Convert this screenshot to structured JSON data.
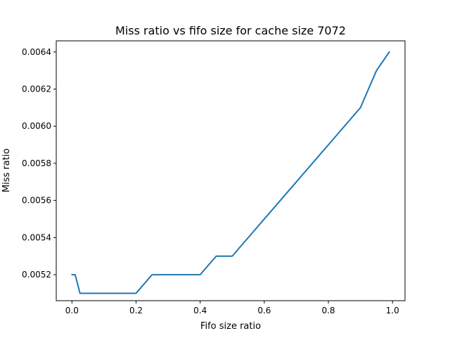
{
  "chart_data": {
    "type": "line",
    "title": "Miss ratio vs fifo size for cache size 7072",
    "xlabel": "Fifo size ratio",
    "ylabel": "Miss ratio",
    "xlim": [
      -0.049,
      1.039
    ],
    "ylim": [
      0.00506,
      0.00646
    ],
    "xticks": [
      0.0,
      0.2,
      0.4,
      0.6,
      0.8,
      1.0
    ],
    "xtick_labels": [
      "0.0",
      "0.2",
      "0.4",
      "0.6",
      "0.8",
      "1.0"
    ],
    "yticks": [
      0.0052,
      0.0054,
      0.0056,
      0.0058,
      0.006,
      0.0062,
      0.0064
    ],
    "ytick_labels": [
      "0.0052",
      "0.0054",
      "0.0056",
      "0.0058",
      "0.0060",
      "0.0062",
      "0.0064"
    ],
    "grid": false,
    "series": [
      {
        "color": "#1f77b4",
        "x": [
          0.0,
          0.01,
          0.025,
          0.05,
          0.1,
          0.15,
          0.2,
          0.25,
          0.3,
          0.35,
          0.4,
          0.45,
          0.5,
          0.55,
          0.6,
          0.65,
          0.7,
          0.75,
          0.8,
          0.85,
          0.9,
          0.95,
          0.99
        ],
        "y": [
          0.0052,
          0.0052,
          0.0051,
          0.0051,
          0.0051,
          0.0051,
          0.0051,
          0.0052,
          0.0052,
          0.0052,
          0.0052,
          0.0053,
          0.0053,
          0.0054,
          0.0055,
          0.0056,
          0.0057,
          0.0058,
          0.0059,
          0.006,
          0.0061,
          0.0063,
          0.0064
        ]
      }
    ]
  }
}
